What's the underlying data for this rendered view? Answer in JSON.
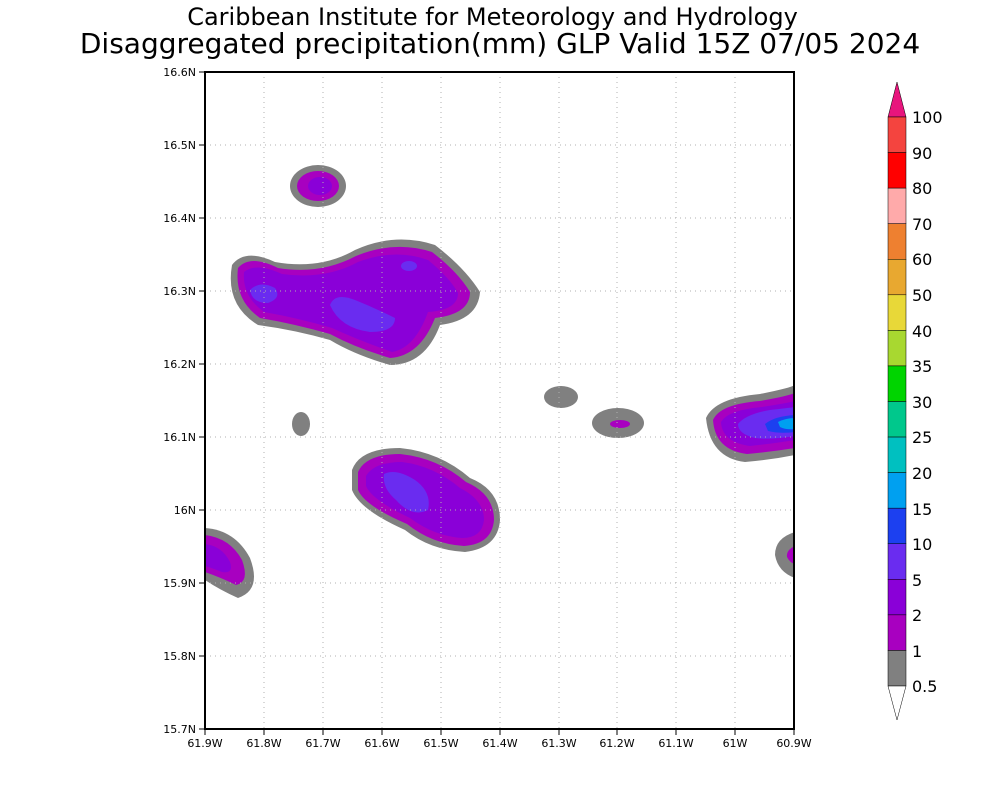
{
  "title": "Caribbean Institute for Meteorology and Hydrology",
  "subtitle": "Disaggregated precipitation(mm) GLP Valid 15Z 07/05 2024",
  "map": {
    "lat_range": [
      15.7,
      16.6
    ],
    "lon_range": [
      -61.9,
      -60.9
    ],
    "y_tick_labels": [
      "16.6N",
      "16.5N",
      "16.4N",
      "16.3N",
      "16.2N",
      "16.1N",
      "16N",
      "15.9N",
      "15.8N",
      "15.7N"
    ],
    "x_tick_labels": [
      "61.9W",
      "61.8W",
      "61.7W",
      "61.6W",
      "61.5W",
      "61.4W",
      "61.3W",
      "61.2W",
      "61.1W",
      "61W",
      "60.9W"
    ],
    "grid": "dotted"
  },
  "legend": {
    "labels": [
      "100",
      "90",
      "80",
      "70",
      "60",
      "50",
      "40",
      "35",
      "30",
      "25",
      "20",
      "15",
      "10",
      "5",
      "2",
      "1",
      "0.5"
    ],
    "colors": [
      "#e8157d",
      "#f4443f",
      "#ff0000",
      "#ffaaaa",
      "#ee8030",
      "#e8a830",
      "#e8d838",
      "#a8d830",
      "#00d400",
      "#00c88c",
      "#00c0c0",
      "#00a0f0",
      "#1c40f0",
      "#6a2cf0",
      "#8a00d8",
      "#a800c0",
      "#808080",
      "#ffffff"
    ]
  }
}
